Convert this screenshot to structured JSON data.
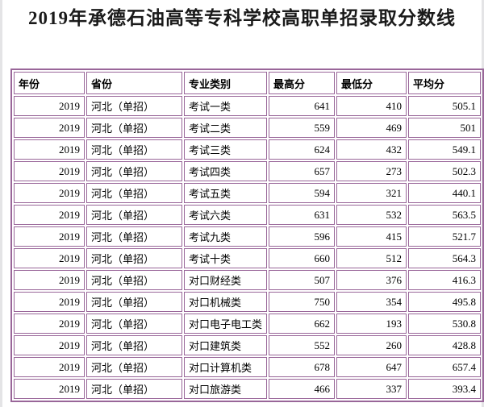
{
  "page": {
    "title": "2019年承德石油高等专科学校高职单招录取分数线"
  },
  "colors": {
    "table_border": "#996699",
    "page_background": "#ffffff",
    "text": "#000000"
  },
  "table": {
    "headers": [
      "年份",
      "省份",
      "专业类别",
      "最高分",
      "最低分",
      "平均分"
    ],
    "column_keys": [
      "year",
      "province",
      "category",
      "max-score",
      "min-score",
      "avg-score"
    ],
    "rows": [
      [
        "2019",
        "河北（单招）",
        "考试一类",
        "641",
        "410",
        "505.1"
      ],
      [
        "2019",
        "河北（单招）",
        "考试二类",
        "559",
        "469",
        "501"
      ],
      [
        "2019",
        "河北（单招）",
        "考试三类",
        "624",
        "432",
        "549.1"
      ],
      [
        "2019",
        "河北（单招）",
        "考试四类",
        "657",
        "273",
        "502.3"
      ],
      [
        "2019",
        "河北（单招）",
        "考试五类",
        "594",
        "321",
        "440.1"
      ],
      [
        "2019",
        "河北（单招）",
        "考试六类",
        "631",
        "532",
        "563.5"
      ],
      [
        "2019",
        "河北（单招）",
        "考试九类",
        "596",
        "415",
        "521.7"
      ],
      [
        "2019",
        "河北（单招）",
        "考试十类",
        "660",
        "512",
        "564.3"
      ],
      [
        "2019",
        "河北（单招）",
        "对口财经类",
        "507",
        "376",
        "416.3"
      ],
      [
        "2019",
        "河北（单招）",
        "对口机械类",
        "750",
        "354",
        "495.8"
      ],
      [
        "2019",
        "河北（单招）",
        "对口电子电工类",
        "662",
        "193",
        "530.8"
      ],
      [
        "2019",
        "河北（单招）",
        "对口建筑类",
        "552",
        "260",
        "428.8"
      ],
      [
        "2019",
        "河北（单招）",
        "对口计算机类",
        "678",
        "647",
        "657.4"
      ],
      [
        "2019",
        "河北（单招）",
        "对口旅游类",
        "466",
        "337",
        "393.4"
      ]
    ]
  }
}
